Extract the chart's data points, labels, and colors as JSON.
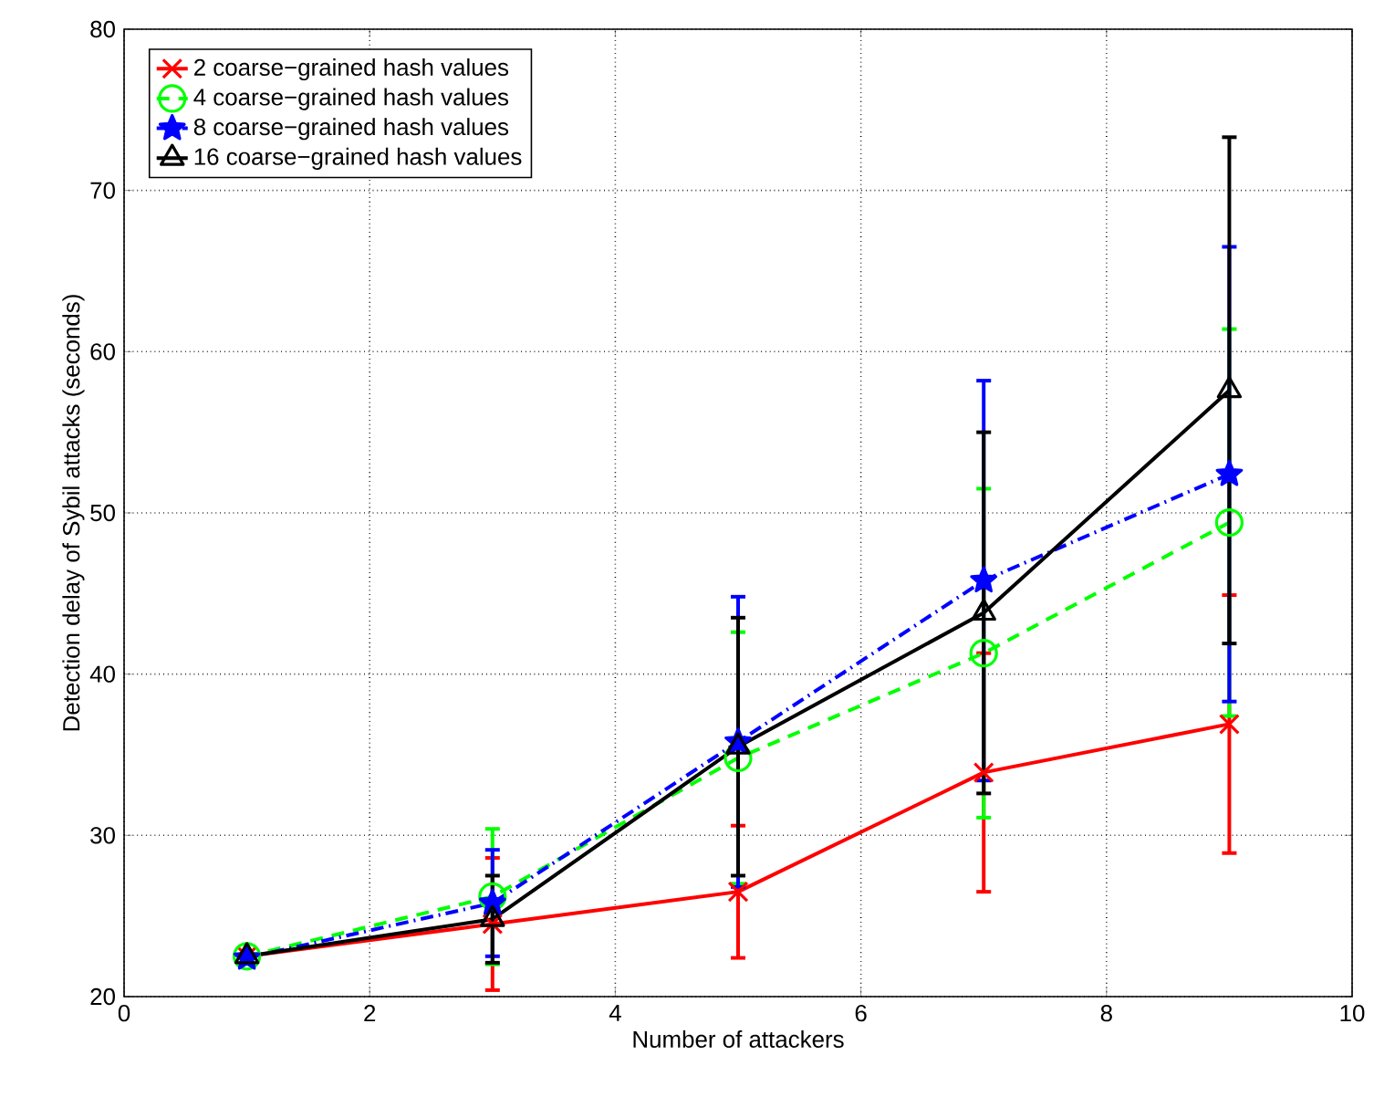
{
  "chart_data": {
    "type": "line",
    "xlabel": "Number of attackers",
    "ylabel": "Detection delay of Sybil attacks (seconds)",
    "x": [
      1,
      3,
      5,
      7,
      9
    ],
    "series": [
      {
        "name": "2 coarse−grained hash values",
        "color": "#ff0000",
        "marker": "cross",
        "line_style": "solid",
        "values": [
          22.5,
          24.5,
          26.5,
          33.9,
          36.9
        ],
        "errors": [
          null,
          4.1,
          4.1,
          7.4,
          8.0
        ]
      },
      {
        "name": "4 coarse−grained hash values",
        "color": "#00ff00",
        "marker": "circle",
        "line_style": "dashed",
        "values": [
          22.5,
          26.2,
          34.8,
          41.3,
          49.4
        ],
        "errors": [
          null,
          4.2,
          7.8,
          10.2,
          12.0
        ]
      },
      {
        "name": "8 coarse−grained hash values",
        "color": "#0000ff",
        "marker": "star",
        "line_style": "dashdot",
        "values": [
          22.4,
          25.8,
          35.8,
          45.8,
          52.4
        ],
        "errors": [
          null,
          3.3,
          9.0,
          12.4,
          14.1
        ]
      },
      {
        "name": "16 coarse−grained hash values",
        "color": "#000000",
        "marker": "triangle",
        "line_style": "solid",
        "values": [
          22.5,
          24.8,
          35.5,
          43.8,
          57.6
        ],
        "errors": [
          null,
          2.7,
          8.0,
          11.2,
          15.7
        ]
      }
    ],
    "xlim": [
      0,
      10
    ],
    "ylim": [
      20,
      80
    ],
    "xticks": [
      0,
      2,
      4,
      6,
      8,
      10
    ],
    "yticks": [
      20,
      30,
      40,
      50,
      60,
      70,
      80
    ],
    "grid": true,
    "legend": "top left"
  }
}
